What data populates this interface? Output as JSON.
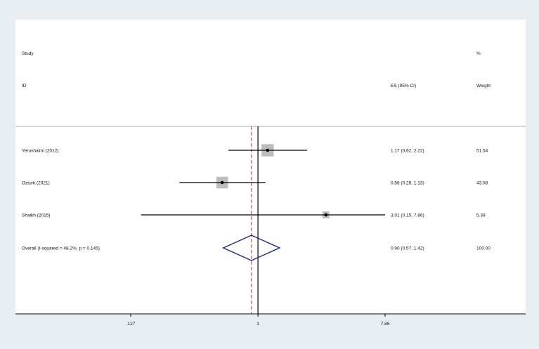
{
  "colors": {
    "outer_background": "#e8eef2",
    "plot_background": "#ffffff",
    "line_of_no_effect": "#000000",
    "overall_effect_line": "#c0392b",
    "weight_box": "#bdbdbd",
    "diamond": "#1b2a7a"
  },
  "chart_data": {
    "type": "forest",
    "scale": "log",
    "headers": {
      "study_line1": "Study",
      "study_line2": "ID",
      "es": "ES (95% CI)",
      "weight_line1": "%",
      "weight_line2": "Weight"
    },
    "studies": [
      {
        "label": "Yerushalmi (2012)",
        "es": 1.17,
        "lower": 0.62,
        "upper": 2.22,
        "weight": 51.54,
        "es_text": "1.17 (0.62, 2.22)",
        "weight_text": "51.54"
      },
      {
        "label": "Ozturk (2021)",
        "es": 0.56,
        "lower": 0.28,
        "upper": 1.13,
        "weight": 43.08,
        "es_text": "0.56 (0.28, 1.13)",
        "weight_text": "43.08"
      },
      {
        "label": "Shaikh (2015)",
        "es": 3.01,
        "lower": 0.15,
        "upper": 7.86,
        "weight": 5.39,
        "es_text": "3.01 (0.15, 7.86)",
        "weight_text": "5.39"
      }
    ],
    "overall": {
      "label": "Overall  (I-squared = 48.2%, p = 0.145)",
      "es": 0.9,
      "lower": 0.57,
      "upper": 1.42,
      "es_text": "0.90 (0.57, 1.42)",
      "weight_text": "100.00"
    },
    "reference_line": 1,
    "x_ticks": [
      {
        "value": 0.127,
        "label": ".127"
      },
      {
        "value": 1,
        "label": "1"
      },
      {
        "value": 7.86,
        "label": "7.86"
      }
    ],
    "x_range": [
      0.066,
      15.1
    ]
  }
}
